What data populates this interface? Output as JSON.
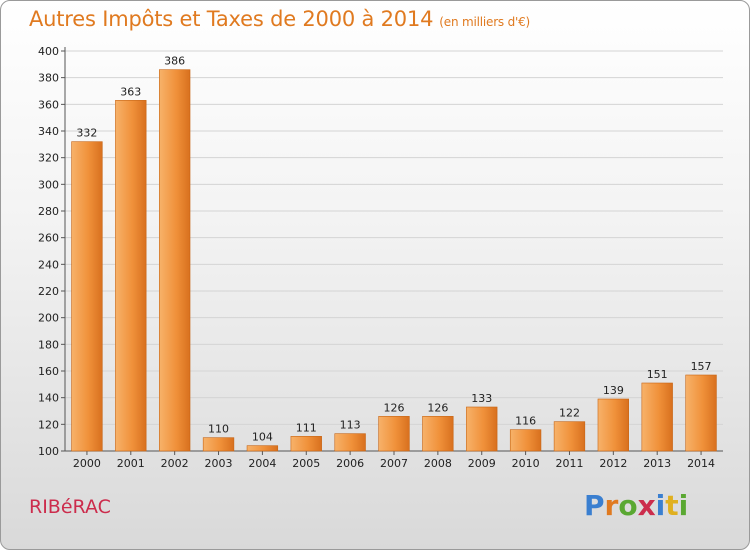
{
  "title": "Autres Impôts et Taxes de 2000 à 2014",
  "subtitle": "(en milliers d'€)",
  "commune": "RIBéRAC",
  "logo": {
    "letters": [
      "P",
      "r",
      "o",
      "x",
      "i",
      "t",
      "i"
    ],
    "colors": [
      "#3a7fd0",
      "#e07a20",
      "#5aa832",
      "#cc2c4c",
      "#3a7fd0",
      "#e0b020",
      "#5aa832"
    ]
  },
  "colors": {
    "title": "#e07a20",
    "bar_light": "#f6a85a",
    "bar_dark": "#d8701e",
    "commune": "#cc2c4c"
  },
  "chart_data": {
    "type": "bar",
    "categories": [
      "2000",
      "2001",
      "2002",
      "2003",
      "2004",
      "2005",
      "2006",
      "2007",
      "2008",
      "2009",
      "2010",
      "2011",
      "2012",
      "2013",
      "2014"
    ],
    "values": [
      332,
      363,
      386,
      110,
      104,
      111,
      113,
      126,
      126,
      133,
      116,
      122,
      139,
      151,
      157
    ],
    "ylim": [
      100,
      400
    ],
    "yticks": [
      100,
      120,
      140,
      160,
      180,
      200,
      220,
      240,
      260,
      280,
      300,
      320,
      340,
      360,
      380,
      400
    ],
    "grid": true
  }
}
